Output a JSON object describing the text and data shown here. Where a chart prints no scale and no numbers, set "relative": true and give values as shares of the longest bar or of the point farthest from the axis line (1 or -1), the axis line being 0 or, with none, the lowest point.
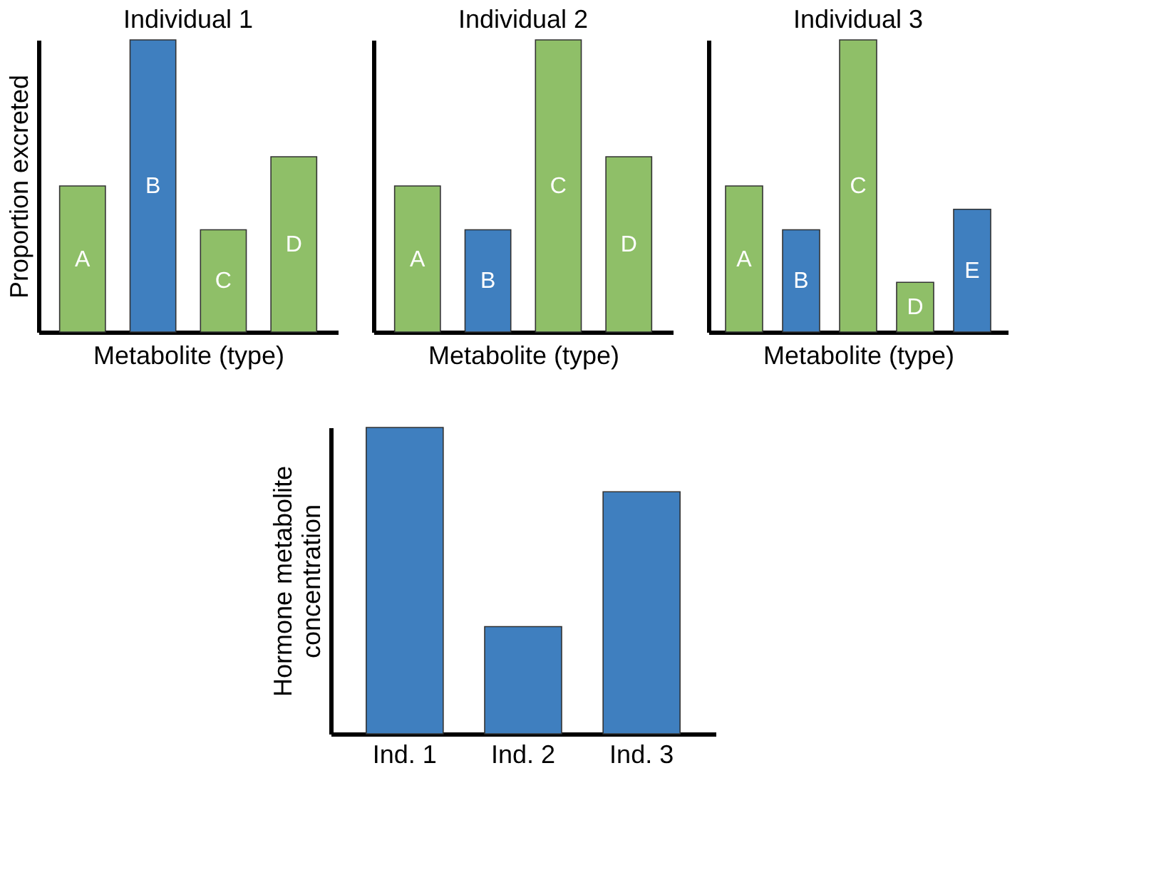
{
  "chart_data": [
    {
      "type": "bar",
      "title": "Individual 1",
      "xlabel": "Metabolite (type)",
      "ylabel": "Proportion excreted",
      "relative": true,
      "tick_labels": false,
      "categories": [
        null,
        null,
        null,
        null
      ],
      "annotations": [
        "A",
        "B",
        "C",
        "D"
      ],
      "values": [
        0.5,
        1,
        0.35,
        0.6
      ],
      "colors": [
        "#8fbf68",
        "#3f7fbf",
        "#8fbf68",
        "#8fbf68"
      ]
    },
    {
      "type": "bar",
      "title": "Individual 2",
      "xlabel": "Metabolite (type)",
      "relative": true,
      "tick_labels": false,
      "categories": [
        null,
        null,
        null,
        null
      ],
      "annotations": [
        "A",
        "B",
        "C",
        "D"
      ],
      "values": [
        0.5,
        0.35,
        1,
        0.6
      ],
      "colors": [
        "#8fbf68",
        "#3f7fbf",
        "#8fbf68",
        "#8fbf68"
      ]
    },
    {
      "type": "bar",
      "title": "Individual 3",
      "xlabel": "Metabolite (type)",
      "relative": true,
      "tick_labels": false,
      "categories": [
        null,
        null,
        null,
        null,
        null
      ],
      "annotations": [
        "A",
        "B",
        "C",
        "D",
        "E"
      ],
      "values": [
        0.5,
        0.35,
        1,
        0.17,
        0.42
      ],
      "colors": [
        "#8fbf68",
        "#3f7fbf",
        "#8fbf68",
        "#8fbf68",
        "#3f7fbf"
      ]
    },
    {
      "type": "bar",
      "ylabel": "Hormone metabolite concentration",
      "relative": true,
      "tick_labels": "x",
      "categories": [
        "Ind. 1",
        "Ind. 2",
        "Ind. 3"
      ],
      "values": [
        1,
        0.35,
        0.79
      ],
      "colors": [
        "#3f7fbf",
        "#3f7fbf",
        "#3f7fbf"
      ]
    }
  ]
}
